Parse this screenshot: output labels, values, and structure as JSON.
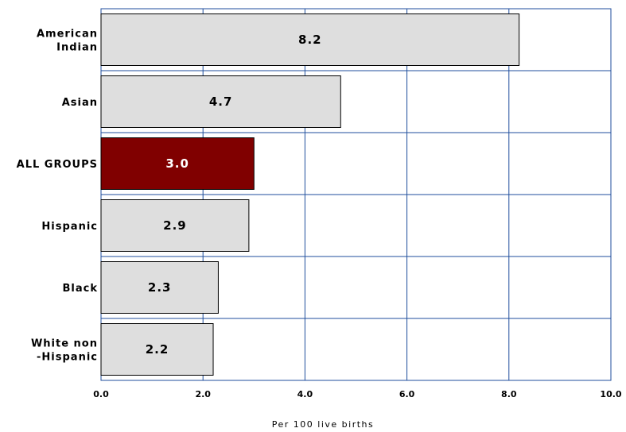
{
  "chart_data": {
    "type": "bar",
    "orientation": "horizontal",
    "categories": [
      [
        "American",
        "Indian"
      ],
      [
        "Asian"
      ],
      [
        "ALL GROUPS"
      ],
      [
        "Hispanic"
      ],
      [
        "Black"
      ],
      [
        "White non",
        "-Hispanic"
      ]
    ],
    "values": [
      8.2,
      4.7,
      3.0,
      2.9,
      2.3,
      2.2
    ],
    "value_labels": [
      "8.2",
      "4.7",
      "3.0",
      "2.9",
      "2.3",
      "2.2"
    ],
    "highlight_index": 2,
    "xlabel": "Per 100 live births",
    "xlim": [
      0,
      10
    ],
    "xticks": [
      0,
      2,
      4,
      6,
      8,
      10
    ],
    "xtick_labels": [
      "0.0",
      "2.0",
      "4.0",
      "6.0",
      "8.0",
      "10.0"
    ],
    "grid": true,
    "colors": {
      "bar": "#dedede",
      "highlight_bar": "#800000",
      "bar_border": "#000000",
      "grid": "#1f4e9c",
      "label_text": "#000000",
      "highlight_label_text": "#ffffff"
    }
  }
}
